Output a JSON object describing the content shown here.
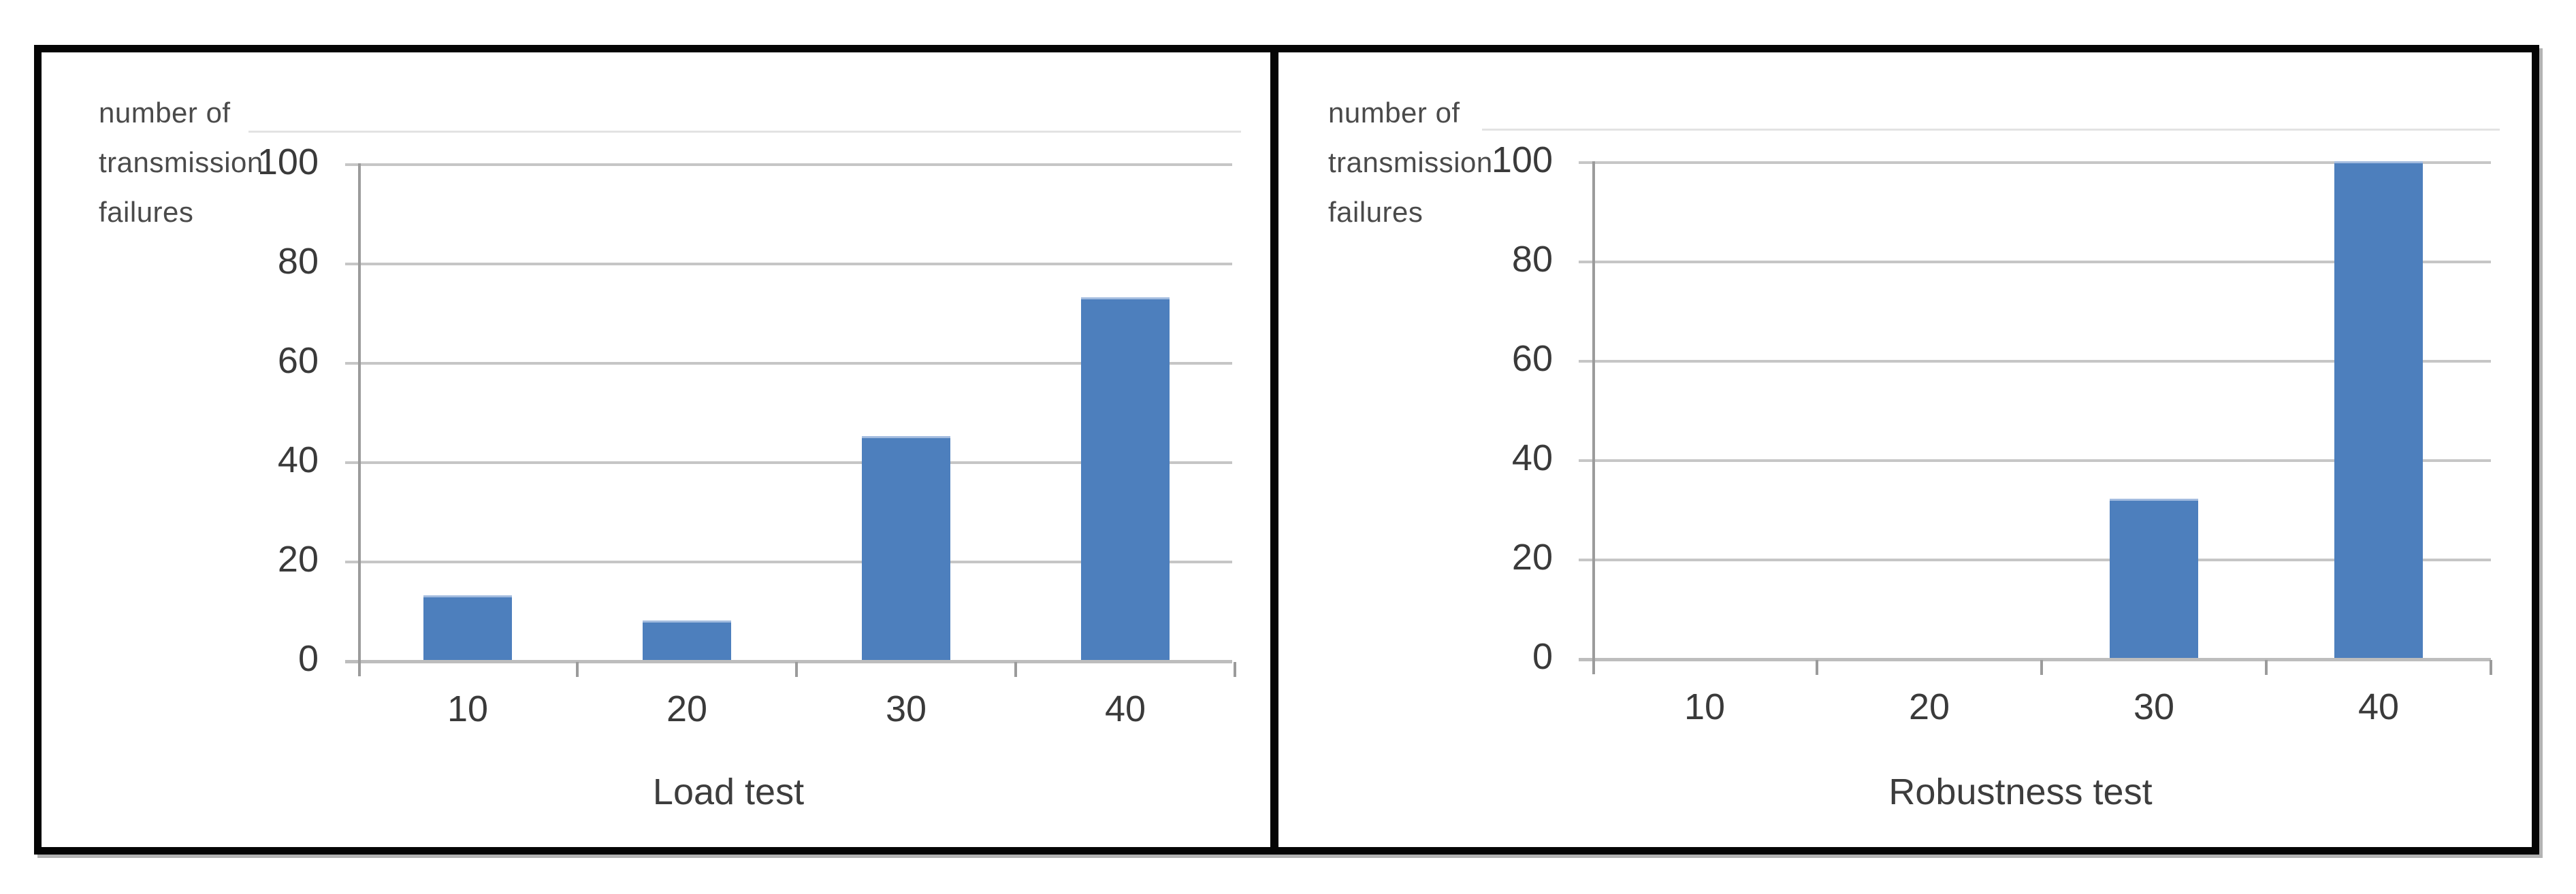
{
  "chart_data": [
    {
      "type": "bar",
      "title": "",
      "xlabel": "Load test",
      "ylabel": "number of transmission failures",
      "ylabel_lines": [
        "number of",
        "transmission",
        "failures"
      ],
      "categories": [
        "10",
        "20",
        "30",
        "40"
      ],
      "values": [
        13,
        8,
        45,
        73
      ],
      "yticks": [
        "0",
        "20",
        "40",
        "60",
        "80",
        "100"
      ],
      "ylim": [
        0,
        100
      ],
      "grid": true,
      "legend": "none",
      "bar_color": "#4d7fbd",
      "gridline_color": "#c6c6c6",
      "text_color": "#3a3a3a"
    },
    {
      "type": "bar",
      "title": "",
      "xlabel": "Robustness test",
      "ylabel": "number of transmission failures",
      "ylabel_lines": [
        "number of",
        "transmission",
        "failures"
      ],
      "categories": [
        "10",
        "20",
        "30",
        "40"
      ],
      "values": [
        0,
        0,
        32,
        100
      ],
      "yticks": [
        "0",
        "20",
        "40",
        "60",
        "80",
        "100"
      ],
      "ylim": [
        0,
        100
      ],
      "grid": true,
      "legend": "none",
      "bar_color": "#4d7fbd",
      "gridline_color": "#c6c6c6",
      "text_color": "#3a3a3a"
    }
  ]
}
